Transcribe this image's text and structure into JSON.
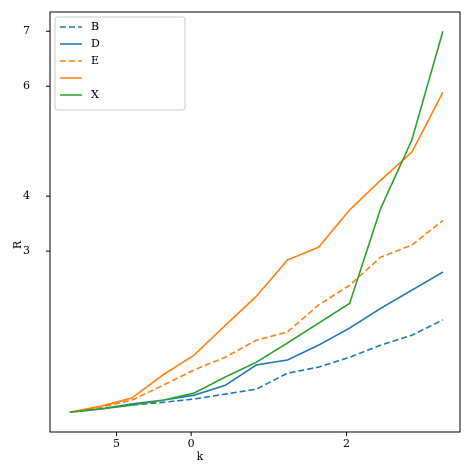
{
  "chart_data": {
    "type": "line",
    "xlabel": "k",
    "ylabel": "R",
    "x": [
      0,
      1,
      2,
      3,
      4,
      5,
      6,
      7,
      8,
      9,
      10,
      11,
      12
    ],
    "xlim": [
      -0.64,
      12.55
    ],
    "xticks": [
      {
        "value": 1.5,
        "label": "5"
      },
      {
        "value": 3.9,
        "label": "0"
      },
      {
        "value": 8.9,
        "label": "2"
      }
    ],
    "ylim": [
      -0.29,
      7.35
    ],
    "yticks": [
      3,
      4,
      6,
      7
    ],
    "legend": "upper left",
    "series": [
      {
        "name": "B",
        "color": "#1f77b4",
        "dash": true,
        "values": [
          0.07,
          0.13,
          0.2,
          0.25,
          0.31,
          0.4,
          0.49,
          0.78,
          0.89,
          1.07,
          1.29,
          1.47,
          1.75
        ]
      },
      {
        "name": "D",
        "color": "#1f77b4",
        "dash": false,
        "values": [
          0.07,
          0.13,
          0.22,
          0.29,
          0.38,
          0.56,
          0.93,
          1.02,
          1.29,
          1.6,
          1.96,
          2.29,
          2.62
        ]
      },
      {
        "name": "E",
        "color": "#ff7f0e",
        "dash": true,
        "values": [
          0.07,
          0.16,
          0.29,
          0.56,
          0.84,
          1.07,
          1.38,
          1.53,
          2.02,
          2.38,
          2.89,
          3.11,
          3.56
        ]
      },
      {
        "name": null,
        "color": "#ff7f0e",
        "dash": false,
        "values": [
          0.07,
          0.18,
          0.33,
          0.75,
          1.11,
          1.65,
          2.18,
          2.84,
          3.07,
          3.75,
          4.29,
          4.8,
          5.89
        ]
      },
      {
        "name": "X",
        "color": "#2ca02c",
        "dash": false,
        "values": [
          0.07,
          0.13,
          0.2,
          0.29,
          0.42,
          0.71,
          0.98,
          1.33,
          1.69,
          2.05,
          3.78,
          5.02,
          7.0
        ]
      }
    ]
  }
}
